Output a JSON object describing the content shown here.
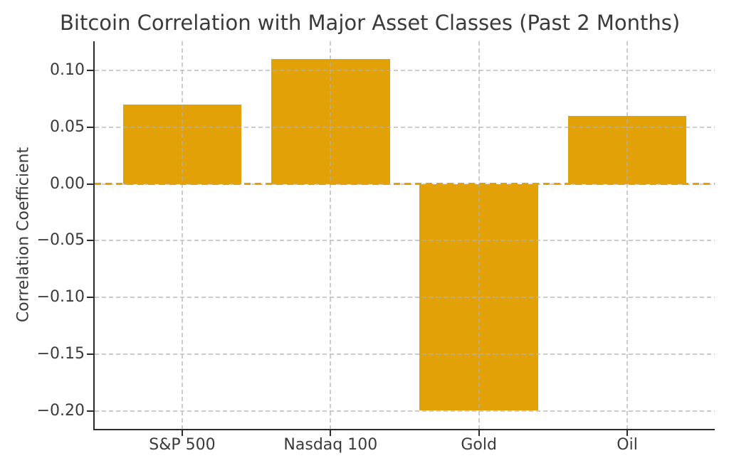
{
  "chart_data": {
    "type": "bar",
    "title": "Bitcoin Correlation with Major Asset Classes (Past 2 Months)",
    "xlabel": "",
    "ylabel": "Correlation Coefficient",
    "categories": [
      "S&P 500",
      "Nasdaq 100",
      "Gold",
      "Oil"
    ],
    "values": [
      0.07,
      0.11,
      -0.2,
      0.06
    ],
    "bar_width": 0.8,
    "ylim": [
      -0.216,
      0.126
    ],
    "xlim": [
      -0.59,
      3.59
    ],
    "yticks": [
      0.1,
      0.05,
      0,
      -0.05,
      -0.1,
      -0.15,
      -0.2
    ],
    "ytick_labels": [
      "0.10",
      "0.05",
      "0.00",
      "−0.05",
      "−0.10",
      "−0.15",
      "−0.20"
    ],
    "grid": true,
    "grid_style": "dashed",
    "grid_on_top": true,
    "legend": "none",
    "zero_line": {
      "y": 0,
      "style": "dashed"
    },
    "colors": {
      "bar": "#E2A107",
      "zero_line": "#E2A107",
      "grid": "rgba(176,176,176,0.65)",
      "spine": "#2b2b2b",
      "text": "#3a3a3a",
      "background": "#ffffff"
    }
  }
}
